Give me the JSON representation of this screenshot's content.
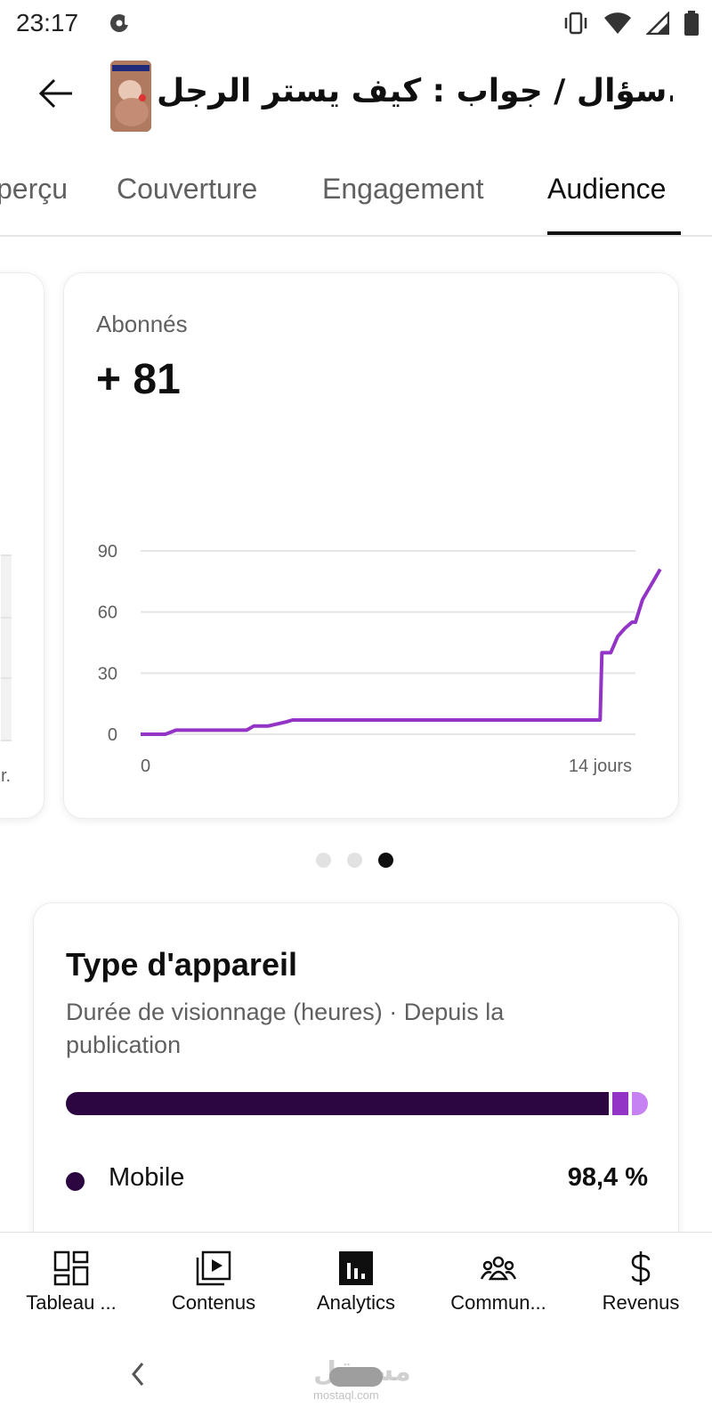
{
  "status_bar": {
    "time": "23:17"
  },
  "header": {
    "title": "سؤال / جواب : كيف يستر الرجل..."
  },
  "tabs": [
    {
      "label": "perçu"
    },
    {
      "label": "Couverture"
    },
    {
      "label": "Engagement"
    },
    {
      "label": "Audience",
      "active": true
    }
  ],
  "prev_card": {
    "axis_fragment": "r."
  },
  "subscribers_card": {
    "label": "Abonnés",
    "value": "+ 81",
    "chart_data": {
      "type": "line",
      "y_ticks": [
        "90",
        "60",
        "30",
        "0"
      ],
      "x_tick_labels": [
        "0",
        "14 jours"
      ],
      "xlim": [
        0,
        14
      ],
      "ylim": [
        0,
        90
      ],
      "grid": true,
      "line_color": "#9334c7",
      "series": [
        {
          "x": [
            0,
            0.7,
            1.0,
            3.0,
            3.2,
            3.6,
            4.1,
            4.3,
            13.0,
            13.05,
            13.3,
            13.5,
            13.7,
            13.9,
            14.0,
            14.2,
            14.5,
            14.7
          ],
          "y": [
            0,
            0,
            2,
            2,
            4,
            4,
            6,
            7,
            7,
            40,
            40,
            48,
            52,
            55,
            55,
            66,
            75,
            81
          ]
        }
      ]
    }
  },
  "carousel": {
    "dots": 3,
    "active_index": 2
  },
  "device_card": {
    "title": "Type d'appareil",
    "subtitle": "Durée de visionnage (heures) · Depuis la publication",
    "segments": [
      {
        "name": "Mobile",
        "percent": 98.4,
        "color": "#2b0640"
      },
      {
        "name": "",
        "percent": 1.0,
        "color": "#9334c7"
      },
      {
        "name": "",
        "percent": 0.6,
        "color": "#c682f2"
      }
    ],
    "legend": [
      {
        "label": "Mobile",
        "value": "98,4 %",
        "color": "#2b0640"
      }
    ]
  },
  "bottom_nav": [
    {
      "label": "Tableau ...",
      "icon": "dashboard-icon"
    },
    {
      "label": "Contenus",
      "icon": "content-icon"
    },
    {
      "label": "Analytics",
      "icon": "analytics-icon",
      "active": true
    },
    {
      "label": "Commun...",
      "icon": "community-icon"
    },
    {
      "label": "Revenus",
      "icon": "dollar-icon"
    }
  ],
  "watermark": {
    "text": "مستقل",
    "sub": "mostaql.com"
  }
}
